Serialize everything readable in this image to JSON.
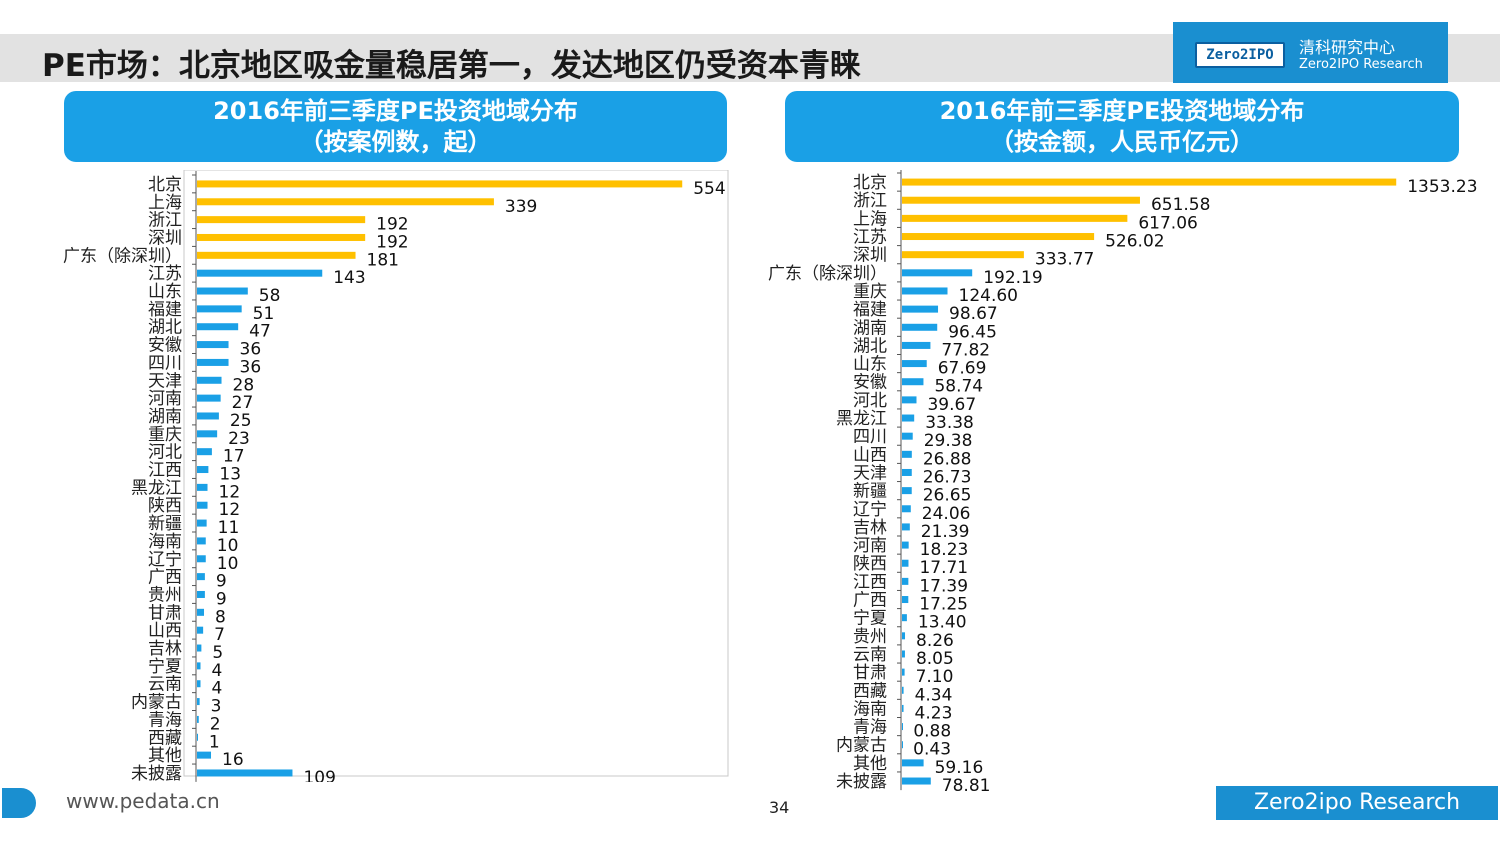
{
  "page": {
    "title": "PE市场：北京地区吸金量稳居第一，发达地区仍受资本青睐",
    "logo_badge": "Zero2IPO",
    "logo_cn": "清科研究中心",
    "logo_en": "Zero2IPO Research",
    "footer_url": "www.pedata.cn",
    "footer_brand": "Zero2ipo Research",
    "page_number": "34",
    "colors": {
      "highlight": "#FFC000",
      "normal": "#1AA0E6",
      "header": "#1AA0E6"
    }
  },
  "chart_data": [
    {
      "type": "bar",
      "orientation": "horizontal",
      "title_line1": "2016年前三季度PE投资地域分布",
      "title_line2": "（按案例数，起）",
      "categories": [
        "北京",
        "上海",
        "浙江",
        "深圳",
        "广东（除深圳）",
        "江苏",
        "山东",
        "福建",
        "湖北",
        "安徽",
        "四川",
        "天津",
        "河南",
        "湖南",
        "重庆",
        "河北",
        "江西",
        "黑龙江",
        "陕西",
        "新疆",
        "海南",
        "辽宁",
        "广西",
        "贵州",
        "甘肃",
        "山西",
        "吉林",
        "宁夏",
        "云南",
        "内蒙古",
        "青海",
        "西藏",
        "其他",
        "未披露"
      ],
      "values": [
        554,
        339,
        192,
        192,
        181,
        143,
        58,
        51,
        47,
        36,
        36,
        28,
        27,
        25,
        23,
        17,
        13,
        12,
        12,
        11,
        10,
        10,
        9,
        9,
        8,
        7,
        5,
        4,
        4,
        3,
        2,
        1,
        16,
        109
      ],
      "labels": [
        "554",
        "339",
        "192",
        "192",
        "181",
        "143",
        "58",
        "51",
        "47",
        "36",
        "36",
        "28",
        "27",
        "25",
        "23",
        "17",
        "13",
        "12",
        "12",
        "11",
        "10",
        "10",
        "9",
        "9",
        "8",
        "7",
        "5",
        "4",
        "4",
        "3",
        "2",
        "1",
        "16",
        "109"
      ],
      "highlight_count": 5,
      "xlim": [
        0,
        580
      ],
      "legend": "none",
      "grid": false
    },
    {
      "type": "bar",
      "orientation": "horizontal",
      "title_line1": "2016年前三季度PE投资地域分布",
      "title_line2": "（按金额，人民币亿元）",
      "categories": [
        "北京",
        "浙江",
        "上海",
        "江苏",
        "深圳",
        "广东（除深圳）",
        "重庆",
        "福建",
        "湖南",
        "湖北",
        "山东",
        "安徽",
        "河北",
        "黑龙江",
        "四川",
        "山西",
        "天津",
        "新疆",
        "辽宁",
        "吉林",
        "河南",
        "陕西",
        "江西",
        "广西",
        "宁夏",
        "贵州",
        "云南",
        "甘肃",
        "西藏",
        "海南",
        "青海",
        "内蒙古",
        "其他",
        "未披露"
      ],
      "values": [
        1353.23,
        651.58,
        617.06,
        526.02,
        333.77,
        192.19,
        124.6,
        98.67,
        96.45,
        77.82,
        67.69,
        58.74,
        39.67,
        33.38,
        29.38,
        26.88,
        26.73,
        26.65,
        24.06,
        21.39,
        18.23,
        17.71,
        17.39,
        17.25,
        13.4,
        8.26,
        8.05,
        7.1,
        4.34,
        4.23,
        0.88,
        0.43,
        59.16,
        78.81
      ],
      "labels": [
        "1353.23",
        "651.58",
        "617.06",
        "526.02",
        "333.77",
        "192.19",
        "124.60",
        "98.67",
        "96.45",
        "77.82",
        "67.69",
        "58.74",
        "39.67",
        "33.38",
        "29.38",
        "26.88",
        "26.73",
        "26.65",
        "24.06",
        "21.39",
        "18.23",
        "17.71",
        "17.39",
        "17.25",
        "13.40",
        "8.26",
        "8.05",
        "7.10",
        "4.34",
        "4.23",
        "0.88",
        "0.43",
        "59.16",
        "78.81"
      ],
      "highlight_count": 5,
      "xlim": [
        0,
        1380
      ],
      "legend": "none",
      "grid": false
    }
  ]
}
